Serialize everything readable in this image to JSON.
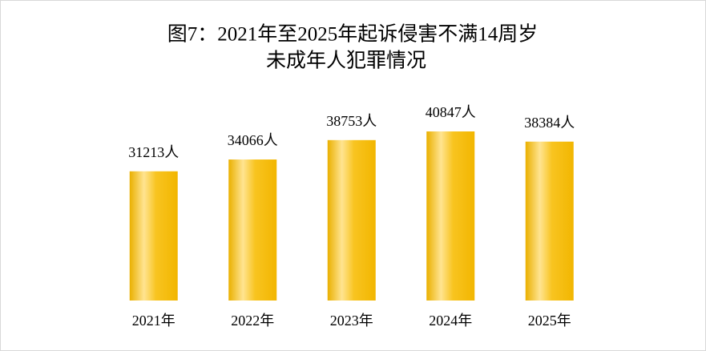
{
  "chart_data": {
    "type": "bar",
    "title": [
      "图7：2021年至2025年起诉侵害不满14周岁",
      "未成年人犯罪情况"
    ],
    "categories": [
      "2021年",
      "2022年",
      "2023年",
      "2024年",
      "2025年"
    ],
    "values": [
      31213,
      34066,
      38753,
      40847,
      38384
    ],
    "value_labels": [
      "31213人",
      "34066人",
      "38753人",
      "40847人",
      "38384人"
    ],
    "color": "#f5bd0a"
  }
}
